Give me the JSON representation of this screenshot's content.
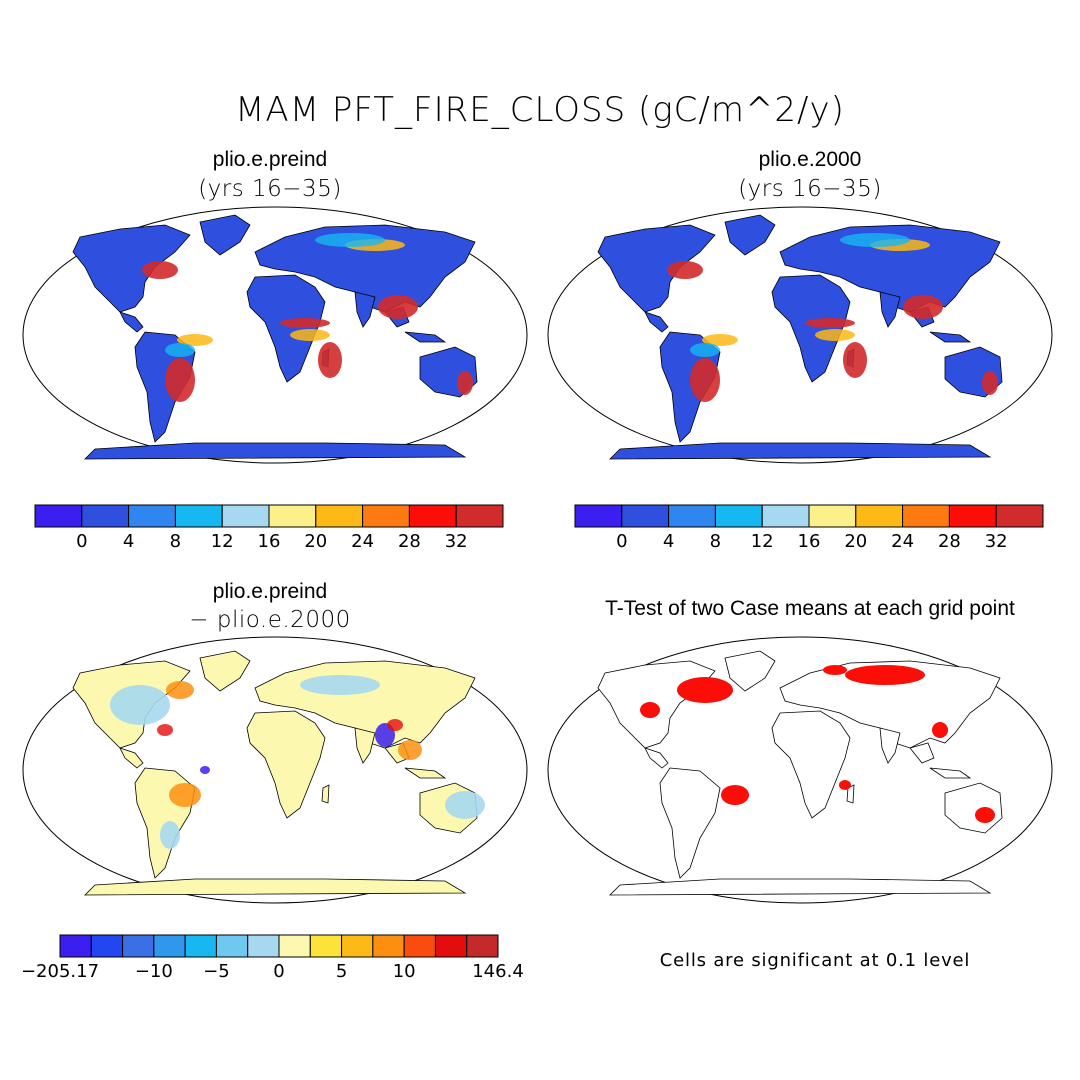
{
  "main_title": "MAM PFT_FIRE_CLOSS (gC/m^2/y)",
  "panels": [
    {
      "title": "plio.e.preind",
      "subtitle": "(yrs 16−35)",
      "kind": "base"
    },
    {
      "title": "plio.e.2000",
      "subtitle": "(yrs 16−35)",
      "kind": "base"
    },
    {
      "title": "plio.e.preind",
      "subtitle": "− plio.e.2000",
      "kind": "diff"
    },
    {
      "title": "T-Test of two Case means at each grid point",
      "subtitle": "",
      "kind": "ttest"
    }
  ],
  "colorbars": {
    "base": {
      "colors": [
        "#3a1ff0",
        "#2f4fde",
        "#2f86ee",
        "#17b7f2",
        "#a6d8f0",
        "#fcf08a",
        "#fdb915",
        "#fd7a10",
        "#fb0e08",
        "#d22b2b"
      ],
      "labels": [
        "0",
        "4",
        "8",
        "12",
        "16",
        "20",
        "24",
        "28",
        "32"
      ]
    },
    "diff": {
      "colors": [
        "#3a1ff0",
        "#2146f2",
        "#3b6fe6",
        "#2f98ee",
        "#17b7f2",
        "#6fc8ef",
        "#a6d8f0",
        "#fcf8b0",
        "#fde23a",
        "#fdb915",
        "#fd8f10",
        "#fb4c10",
        "#e30d0d",
        "#c42a2a"
      ],
      "labels": [
        "−205.17",
        "−10",
        "−5",
        "0",
        "5",
        "10",
        "146.4"
      ]
    }
  },
  "note": "Cells are significant at 0.1 level"
}
